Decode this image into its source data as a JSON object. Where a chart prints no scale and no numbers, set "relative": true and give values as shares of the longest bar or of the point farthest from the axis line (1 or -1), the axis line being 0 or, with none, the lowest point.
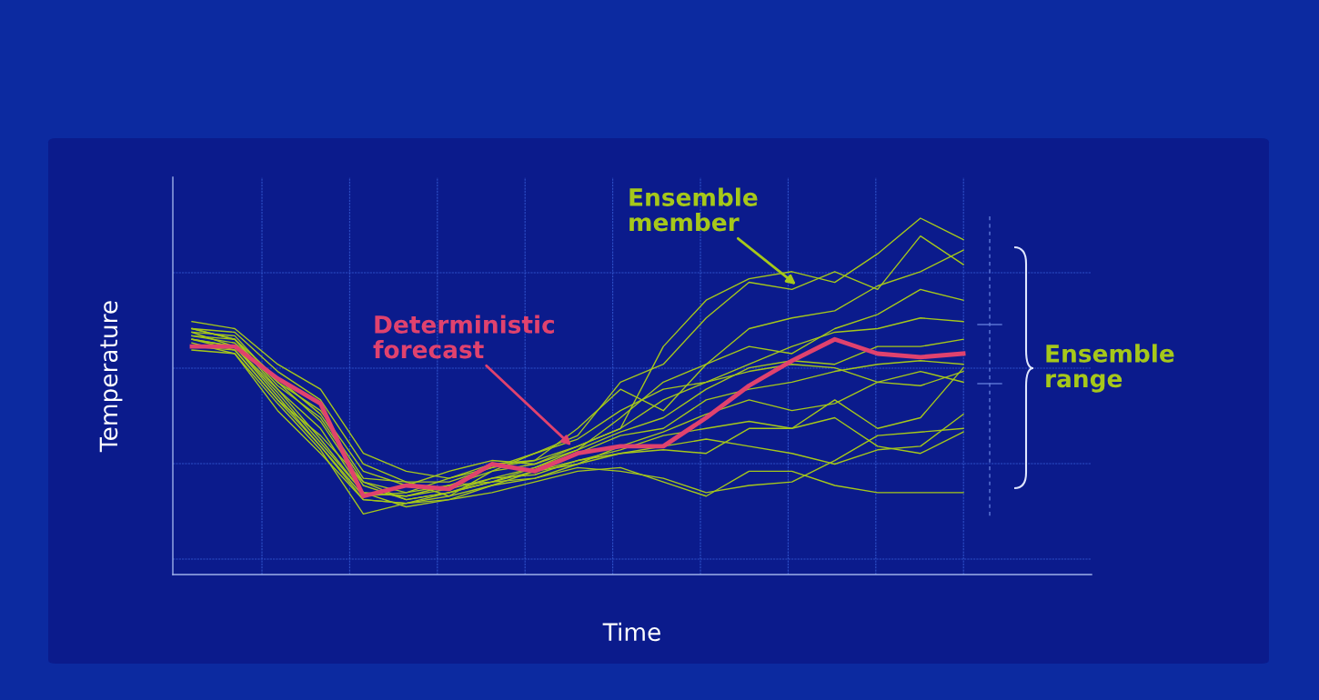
{
  "chart_data": {
    "type": "line",
    "relative": true,
    "xlabel": "Time",
    "ylabel": "Temperature",
    "grid": true,
    "tick_labels": false,
    "marker": "none",
    "line_style": "solid",
    "categories": [
      null,
      null,
      null,
      null,
      null,
      null,
      null,
      null,
      null,
      null,
      null,
      null,
      null,
      null,
      null,
      null,
      null,
      null,
      null
    ],
    "annotations": [
      "Ensemble member",
      "Deterministic forecast",
      "Ensemble range"
    ],
    "series": [
      {
        "color": "#e0426e",
        "values": [
          0.64,
          0.64,
          0.55,
          0.48,
          0.22,
          0.25,
          0.24,
          0.31,
          0.29,
          0.34,
          0.36,
          0.36,
          0.44,
          0.53,
          0.6,
          0.66,
          0.62,
          0.61,
          0.62
        ]
      },
      {
        "color": "#a6c81a",
        "values": [
          0.71,
          0.69,
          0.59,
          0.52,
          0.34,
          0.29,
          0.27,
          0.31,
          0.32,
          0.36,
          0.41,
          0.64,
          0.77,
          0.83,
          0.85,
          0.82,
          0.9,
          1.0,
          0.94
        ]
      },
      {
        "color": "#a6c81a",
        "values": [
          0.69,
          0.68,
          0.57,
          0.49,
          0.31,
          0.26,
          0.26,
          0.3,
          0.34,
          0.39,
          0.54,
          0.59,
          0.72,
          0.82,
          0.8,
          0.85,
          0.8,
          0.95,
          0.87
        ]
      },
      {
        "color": "#a6c81a",
        "values": [
          0.68,
          0.67,
          0.54,
          0.46,
          0.29,
          0.25,
          0.29,
          0.32,
          0.31,
          0.35,
          0.44,
          0.54,
          0.59,
          0.69,
          0.72,
          0.74,
          0.81,
          0.85,
          0.91
        ]
      },
      {
        "color": "#a6c81a",
        "values": [
          0.67,
          0.66,
          0.53,
          0.44,
          0.26,
          0.23,
          0.27,
          0.3,
          0.32,
          0.41,
          0.52,
          0.46,
          0.59,
          0.64,
          0.62,
          0.69,
          0.73,
          0.8,
          0.77
        ]
      },
      {
        "color": "#a6c81a",
        "values": [
          0.66,
          0.64,
          0.52,
          0.41,
          0.23,
          0.22,
          0.25,
          0.29,
          0.31,
          0.36,
          0.41,
          0.49,
          0.54,
          0.59,
          0.64,
          0.68,
          0.69,
          0.72,
          0.71
        ]
      },
      {
        "color": "#a6c81a",
        "values": [
          0.64,
          0.63,
          0.49,
          0.39,
          0.26,
          0.21,
          0.23,
          0.27,
          0.3,
          0.35,
          0.4,
          0.44,
          0.52,
          0.58,
          0.6,
          0.59,
          0.64,
          0.64,
          0.66
        ]
      },
      {
        "color": "#a6c81a",
        "values": [
          0.63,
          0.62,
          0.48,
          0.35,
          0.17,
          0.2,
          0.23,
          0.26,
          0.3,
          0.34,
          0.39,
          0.41,
          0.49,
          0.52,
          0.54,
          0.57,
          0.59,
          0.6,
          0.59
        ]
      },
      {
        "color": "#a6c81a",
        "values": [
          0.69,
          0.66,
          0.55,
          0.45,
          0.27,
          0.26,
          0.22,
          0.29,
          0.34,
          0.38,
          0.46,
          0.52,
          0.54,
          0.57,
          0.59,
          0.58,
          0.54,
          0.57,
          0.54
        ]
      },
      {
        "color": "#a6c81a",
        "values": [
          0.67,
          0.65,
          0.54,
          0.43,
          0.25,
          0.21,
          0.23,
          0.26,
          0.27,
          0.31,
          0.36,
          0.4,
          0.45,
          0.49,
          0.46,
          0.48,
          0.54,
          0.53,
          0.57
        ]
      },
      {
        "color": "#a6c81a",
        "values": [
          0.66,
          0.64,
          0.5,
          0.36,
          0.22,
          0.23,
          0.25,
          0.26,
          0.29,
          0.32,
          0.35,
          0.39,
          0.41,
          0.43,
          0.41,
          0.49,
          0.41,
          0.44,
          0.58
        ]
      },
      {
        "color": "#a6c81a",
        "values": [
          0.65,
          0.62,
          0.46,
          0.34,
          0.21,
          0.2,
          0.21,
          0.25,
          0.29,
          0.31,
          0.34,
          0.35,
          0.34,
          0.41,
          0.41,
          0.44,
          0.36,
          0.34,
          0.4
        ]
      },
      {
        "color": "#a6c81a",
        "values": [
          0.69,
          0.66,
          0.52,
          0.38,
          0.23,
          0.22,
          0.24,
          0.27,
          0.28,
          0.32,
          0.34,
          0.36,
          0.38,
          0.36,
          0.34,
          0.31,
          0.35,
          0.36,
          0.45
        ]
      },
      {
        "color": "#a6c81a",
        "values": [
          0.66,
          0.63,
          0.49,
          0.36,
          0.21,
          0.2,
          0.22,
          0.25,
          0.27,
          0.3,
          0.29,
          0.27,
          0.23,
          0.25,
          0.26,
          0.32,
          0.39,
          0.4,
          0.41
        ]
      },
      {
        "color": "#a6c81a",
        "values": [
          0.68,
          0.64,
          0.51,
          0.37,
          0.23,
          0.19,
          0.21,
          0.23,
          0.26,
          0.29,
          0.3,
          0.26,
          0.22,
          0.29,
          0.29,
          0.25,
          0.23,
          0.23,
          0.23
        ]
      }
    ]
  }
}
